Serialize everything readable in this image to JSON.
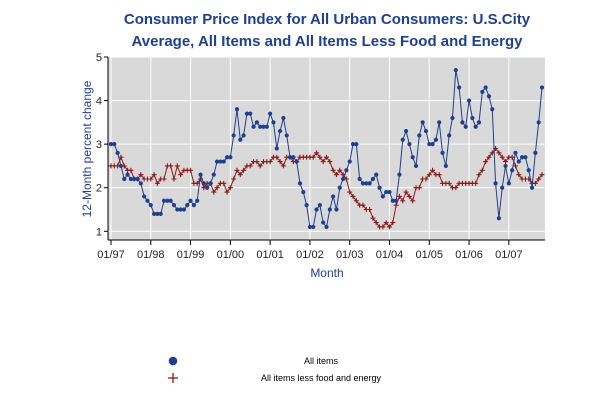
{
  "chart_data": {
    "type": "line",
    "title_line1": "Consumer Price Index for All Urban Consumers: U.S.City",
    "title_line2": "Average, All Items and All Items Less Food and Energy",
    "xlabel": "Month",
    "ylabel": "12-Month percent change",
    "ylim": [
      0.8,
      5
    ],
    "yticks": [
      "1",
      "2",
      "3",
      "4",
      "5"
    ],
    "xticks": [
      "01/97",
      "01/98",
      "01/99",
      "01/00",
      "01/01",
      "01/02",
      "01/03",
      "01/04",
      "01/05",
      "01/06",
      "01/07"
    ],
    "grid": true,
    "start": "1997-01",
    "end": "2007-11",
    "series": [
      {
        "name": "All items",
        "color": "#1f3f8f",
        "marker": "circle",
        "values": [
          3.0,
          3.0,
          2.8,
          2.5,
          2.2,
          2.3,
          2.2,
          2.2,
          2.2,
          2.1,
          1.8,
          1.7,
          1.6,
          1.4,
          1.4,
          1.4,
          1.7,
          1.7,
          1.7,
          1.6,
          1.5,
          1.5,
          1.5,
          1.6,
          1.7,
          1.6,
          1.7,
          2.3,
          2.1,
          2.0,
          2.1,
          2.3,
          2.6,
          2.6,
          2.6,
          2.7,
          2.7,
          3.2,
          3.8,
          3.1,
          3.2,
          3.7,
          3.7,
          3.4,
          3.5,
          3.4,
          3.4,
          3.4,
          3.7,
          3.5,
          2.9,
          3.3,
          3.6,
          3.2,
          2.7,
          2.7,
          2.6,
          2.1,
          1.9,
          1.6,
          1.1,
          1.1,
          1.5,
          1.6,
          1.2,
          1.1,
          1.5,
          1.8,
          1.5,
          2.0,
          2.2,
          2.4,
          2.6,
          3.0,
          3.0,
          2.2,
          2.1,
          2.1,
          2.1,
          2.2,
          2.3,
          2.0,
          1.8,
          1.9,
          1.9,
          1.7,
          1.7,
          2.3,
          3.1,
          3.3,
          3.0,
          2.7,
          2.5,
          3.2,
          3.5,
          3.3,
          3.0,
          3.0,
          3.1,
          3.5,
          2.8,
          2.5,
          3.2,
          3.6,
          4.7,
          4.3,
          3.5,
          3.4,
          4.0,
          3.6,
          3.4,
          3.5,
          4.2,
          4.3,
          4.1,
          3.8,
          2.1,
          1.3,
          2.0,
          2.5,
          2.1,
          2.4,
          2.8,
          2.6,
          2.7,
          2.7,
          2.4,
          2.0,
          2.8,
          3.5,
          4.3
        ]
      },
      {
        "name": "All items less food and energy",
        "color": "#8b1a1a",
        "marker": "plus",
        "values": [
          2.5,
          2.5,
          2.5,
          2.7,
          2.5,
          2.4,
          2.4,
          2.2,
          2.2,
          2.3,
          2.2,
          2.2,
          2.2,
          2.3,
          2.1,
          2.2,
          2.2,
          2.5,
          2.5,
          2.2,
          2.5,
          2.3,
          2.4,
          2.4,
          2.4,
          2.1,
          2.1,
          2.2,
          2.0,
          2.1,
          2.1,
          1.9,
          2.0,
          2.1,
          2.1,
          1.9,
          2.0,
          2.2,
          2.4,
          2.3,
          2.4,
          2.5,
          2.5,
          2.6,
          2.6,
          2.5,
          2.6,
          2.6,
          2.6,
          2.7,
          2.7,
          2.6,
          2.5,
          2.7,
          2.7,
          2.6,
          2.6,
          2.7,
          2.7,
          2.7,
          2.7,
          2.7,
          2.8,
          2.7,
          2.6,
          2.7,
          2.6,
          2.4,
          2.3,
          2.4,
          2.3,
          2.2,
          1.9,
          1.8,
          1.7,
          1.6,
          1.6,
          1.5,
          1.5,
          1.3,
          1.2,
          1.1,
          1.1,
          1.2,
          1.1,
          1.2,
          1.6,
          1.8,
          1.7,
          1.9,
          1.8,
          1.7,
          2.0,
          2.0,
          2.2,
          2.2,
          2.3,
          2.4,
          2.3,
          2.3,
          2.1,
          2.1,
          2.1,
          2.0,
          2.0,
          2.1,
          2.1,
          2.1,
          2.1,
          2.1,
          2.1,
          2.3,
          2.4,
          2.6,
          2.7,
          2.8,
          2.9,
          2.8,
          2.7,
          2.6,
          2.7,
          2.7,
          2.5,
          2.3,
          2.2,
          2.2,
          2.2,
          2.1,
          2.1,
          2.2,
          2.3
        ]
      }
    ],
    "legend": {
      "placement": "bottom",
      "items": [
        {
          "label": "All items",
          "marker": "circle",
          "color": "#1f3f8f"
        },
        {
          "label": "All items less food and energy",
          "marker": "plus",
          "color": "#8b1a1a"
        }
      ]
    },
    "plot_background": "#d9d9d9",
    "grid_color": "#ffffff"
  }
}
